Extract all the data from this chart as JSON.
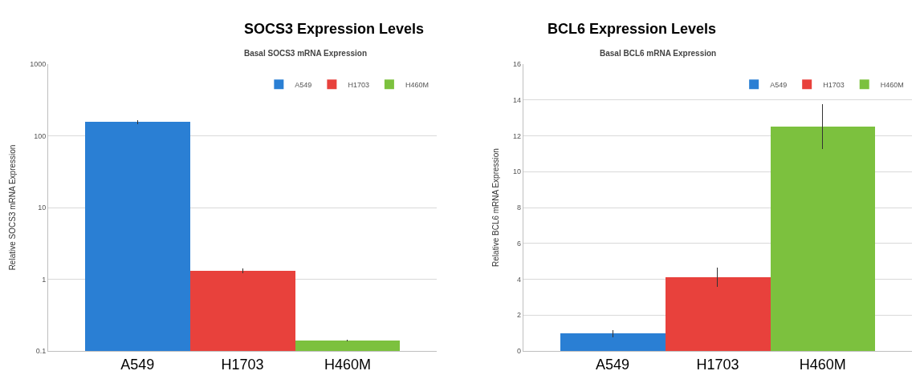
{
  "chart_data": [
    {
      "type": "bar",
      "title": "SOCS3 Expression Levels",
      "subtitle": "Basal SOCS3 mRNA Expression",
      "ylabel": "Relative SOCS3 mRNA Expression",
      "categories": [
        "A549",
        "H1703",
        "H460M"
      ],
      "log": "y",
      "ylim": [
        0.1,
        1000
      ],
      "yticks": [
        0.1,
        1,
        10,
        100,
        1000
      ],
      "grid": "y",
      "legend": "top right",
      "series": [
        {
          "name": "A549",
          "color": "#2a7fd4",
          "values": [
            157,
            null,
            null
          ],
          "errors": [
            10,
            null,
            null
          ]
        },
        {
          "name": "H1703",
          "color": "#e8413c",
          "values": [
            null,
            1.3,
            null
          ],
          "errors": [
            null,
            0.1,
            null
          ]
        },
        {
          "name": "H460M",
          "color": "#7cc13e",
          "values": [
            null,
            null,
            0.14
          ],
          "errors": [
            null,
            null,
            0.005
          ]
        }
      ]
    },
    {
      "type": "bar",
      "title": "BCL6 Expression Levels",
      "subtitle": "Basal BCL6 mRNA Expression",
      "ylabel": "Relative BCL6 mRNA Expression",
      "categories": [
        "A549",
        "H1703",
        "H460M"
      ],
      "ylim": [
        0,
        16
      ],
      "yticks": [
        0,
        2,
        4,
        6,
        8,
        10,
        12,
        14,
        16
      ],
      "grid": "y",
      "legend": "top right",
      "series": [
        {
          "name": "A549",
          "color": "#2a7fd4",
          "values": [
            0.97,
            null,
            null
          ],
          "errors": [
            0.2,
            null,
            null
          ]
        },
        {
          "name": "H1703",
          "color": "#e8413c",
          "values": [
            null,
            4.1,
            null
          ],
          "errors": [
            null,
            0.53,
            null
          ]
        },
        {
          "name": "H460M",
          "color": "#7cc13e",
          "values": [
            null,
            null,
            12.5
          ],
          "errors": [
            null,
            null,
            1.25
          ]
        }
      ]
    }
  ]
}
